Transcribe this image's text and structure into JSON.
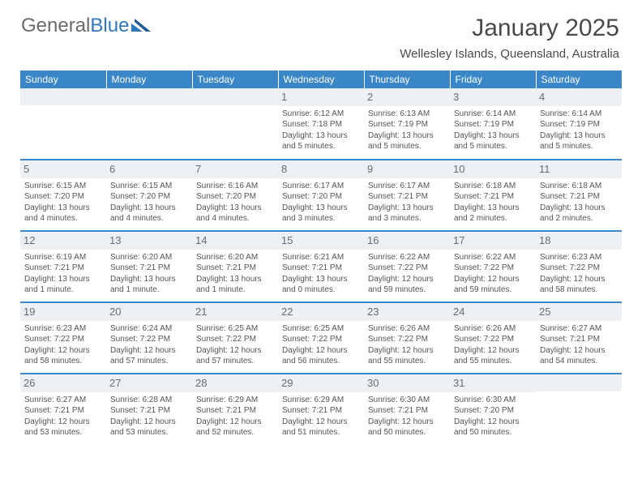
{
  "logo": {
    "text_gray": "General",
    "text_blue": "Blue"
  },
  "title": "January 2025",
  "location": "Wellesley Islands, Queensland, Australia",
  "colors": {
    "header_bg": "#3a87c8",
    "header_text": "#ffffff",
    "daynum_bg": "#eef1f3",
    "row_border": "#3a87c8",
    "body_text": "#555555",
    "title_text": "#4a4a4a",
    "logo_gray": "#6b6b6b",
    "logo_blue": "#2f78bc"
  },
  "day_headers": [
    "Sunday",
    "Monday",
    "Tuesday",
    "Wednesday",
    "Thursday",
    "Friday",
    "Saturday"
  ],
  "weeks": [
    [
      {
        "n": "",
        "sr": "",
        "ss": "",
        "dl": ""
      },
      {
        "n": "",
        "sr": "",
        "ss": "",
        "dl": ""
      },
      {
        "n": "",
        "sr": "",
        "ss": "",
        "dl": ""
      },
      {
        "n": "1",
        "sr": "Sunrise: 6:12 AM",
        "ss": "Sunset: 7:18 PM",
        "dl": "Daylight: 13 hours and 5 minutes."
      },
      {
        "n": "2",
        "sr": "Sunrise: 6:13 AM",
        "ss": "Sunset: 7:19 PM",
        "dl": "Daylight: 13 hours and 5 minutes."
      },
      {
        "n": "3",
        "sr": "Sunrise: 6:14 AM",
        "ss": "Sunset: 7:19 PM",
        "dl": "Daylight: 13 hours and 5 minutes."
      },
      {
        "n": "4",
        "sr": "Sunrise: 6:14 AM",
        "ss": "Sunset: 7:19 PM",
        "dl": "Daylight: 13 hours and 5 minutes."
      }
    ],
    [
      {
        "n": "5",
        "sr": "Sunrise: 6:15 AM",
        "ss": "Sunset: 7:20 PM",
        "dl": "Daylight: 13 hours and 4 minutes."
      },
      {
        "n": "6",
        "sr": "Sunrise: 6:15 AM",
        "ss": "Sunset: 7:20 PM",
        "dl": "Daylight: 13 hours and 4 minutes."
      },
      {
        "n": "7",
        "sr": "Sunrise: 6:16 AM",
        "ss": "Sunset: 7:20 PM",
        "dl": "Daylight: 13 hours and 4 minutes."
      },
      {
        "n": "8",
        "sr": "Sunrise: 6:17 AM",
        "ss": "Sunset: 7:20 PM",
        "dl": "Daylight: 13 hours and 3 minutes."
      },
      {
        "n": "9",
        "sr": "Sunrise: 6:17 AM",
        "ss": "Sunset: 7:21 PM",
        "dl": "Daylight: 13 hours and 3 minutes."
      },
      {
        "n": "10",
        "sr": "Sunrise: 6:18 AM",
        "ss": "Sunset: 7:21 PM",
        "dl": "Daylight: 13 hours and 2 minutes."
      },
      {
        "n": "11",
        "sr": "Sunrise: 6:18 AM",
        "ss": "Sunset: 7:21 PM",
        "dl": "Daylight: 13 hours and 2 minutes."
      }
    ],
    [
      {
        "n": "12",
        "sr": "Sunrise: 6:19 AM",
        "ss": "Sunset: 7:21 PM",
        "dl": "Daylight: 13 hours and 1 minute."
      },
      {
        "n": "13",
        "sr": "Sunrise: 6:20 AM",
        "ss": "Sunset: 7:21 PM",
        "dl": "Daylight: 13 hours and 1 minute."
      },
      {
        "n": "14",
        "sr": "Sunrise: 6:20 AM",
        "ss": "Sunset: 7:21 PM",
        "dl": "Daylight: 13 hours and 1 minute."
      },
      {
        "n": "15",
        "sr": "Sunrise: 6:21 AM",
        "ss": "Sunset: 7:21 PM",
        "dl": "Daylight: 13 hours and 0 minutes."
      },
      {
        "n": "16",
        "sr": "Sunrise: 6:22 AM",
        "ss": "Sunset: 7:22 PM",
        "dl": "Daylight: 12 hours and 59 minutes."
      },
      {
        "n": "17",
        "sr": "Sunrise: 6:22 AM",
        "ss": "Sunset: 7:22 PM",
        "dl": "Daylight: 12 hours and 59 minutes."
      },
      {
        "n": "18",
        "sr": "Sunrise: 6:23 AM",
        "ss": "Sunset: 7:22 PM",
        "dl": "Daylight: 12 hours and 58 minutes."
      }
    ],
    [
      {
        "n": "19",
        "sr": "Sunrise: 6:23 AM",
        "ss": "Sunset: 7:22 PM",
        "dl": "Daylight: 12 hours and 58 minutes."
      },
      {
        "n": "20",
        "sr": "Sunrise: 6:24 AM",
        "ss": "Sunset: 7:22 PM",
        "dl": "Daylight: 12 hours and 57 minutes."
      },
      {
        "n": "21",
        "sr": "Sunrise: 6:25 AM",
        "ss": "Sunset: 7:22 PM",
        "dl": "Daylight: 12 hours and 57 minutes."
      },
      {
        "n": "22",
        "sr": "Sunrise: 6:25 AM",
        "ss": "Sunset: 7:22 PM",
        "dl": "Daylight: 12 hours and 56 minutes."
      },
      {
        "n": "23",
        "sr": "Sunrise: 6:26 AM",
        "ss": "Sunset: 7:22 PM",
        "dl": "Daylight: 12 hours and 55 minutes."
      },
      {
        "n": "24",
        "sr": "Sunrise: 6:26 AM",
        "ss": "Sunset: 7:22 PM",
        "dl": "Daylight: 12 hours and 55 minutes."
      },
      {
        "n": "25",
        "sr": "Sunrise: 6:27 AM",
        "ss": "Sunset: 7:21 PM",
        "dl": "Daylight: 12 hours and 54 minutes."
      }
    ],
    [
      {
        "n": "26",
        "sr": "Sunrise: 6:27 AM",
        "ss": "Sunset: 7:21 PM",
        "dl": "Daylight: 12 hours and 53 minutes."
      },
      {
        "n": "27",
        "sr": "Sunrise: 6:28 AM",
        "ss": "Sunset: 7:21 PM",
        "dl": "Daylight: 12 hours and 53 minutes."
      },
      {
        "n": "28",
        "sr": "Sunrise: 6:29 AM",
        "ss": "Sunset: 7:21 PM",
        "dl": "Daylight: 12 hours and 52 minutes."
      },
      {
        "n": "29",
        "sr": "Sunrise: 6:29 AM",
        "ss": "Sunset: 7:21 PM",
        "dl": "Daylight: 12 hours and 51 minutes."
      },
      {
        "n": "30",
        "sr": "Sunrise: 6:30 AM",
        "ss": "Sunset: 7:21 PM",
        "dl": "Daylight: 12 hours and 50 minutes."
      },
      {
        "n": "31",
        "sr": "Sunrise: 6:30 AM",
        "ss": "Sunset: 7:20 PM",
        "dl": "Daylight: 12 hours and 50 minutes."
      },
      {
        "n": "",
        "sr": "",
        "ss": "",
        "dl": ""
      }
    ]
  ]
}
